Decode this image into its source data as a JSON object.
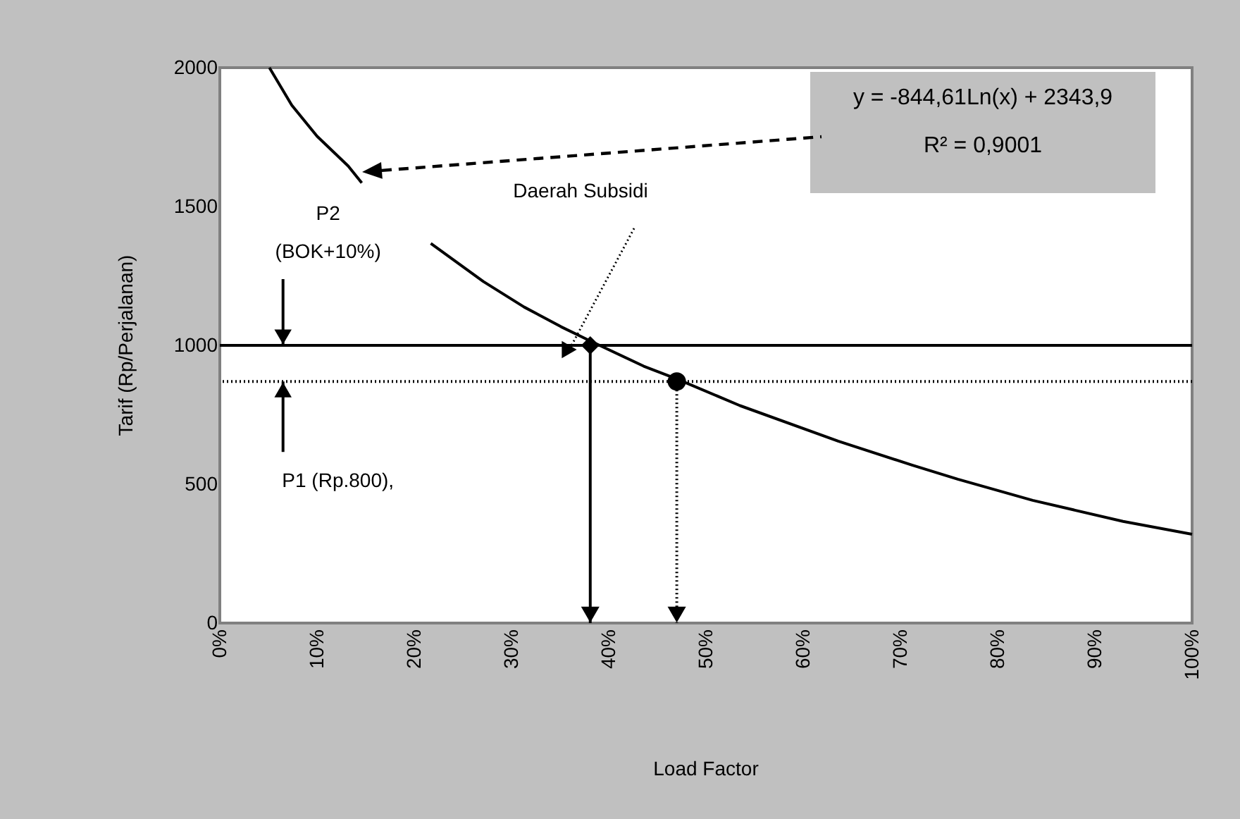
{
  "chart_data": {
    "type": "line",
    "xlabel": "Load Factor",
    "ylabel": "Tarif (Rp/Perjalanan)",
    "xlim": [
      0,
      100
    ],
    "ylim": [
      0,
      2000
    ],
    "xticks": [
      {
        "value": 0,
        "label": "0%"
      },
      {
        "value": 10,
        "label": "10%"
      },
      {
        "value": 20,
        "label": "20%"
      },
      {
        "value": 30,
        "label": "30%"
      },
      {
        "value": 40,
        "label": "40%"
      },
      {
        "value": 50,
        "label": "50%"
      },
      {
        "value": 60,
        "label": "60%"
      },
      {
        "value": 70,
        "label": "70%"
      },
      {
        "value": 80,
        "label": "80%"
      },
      {
        "value": 90,
        "label": "90%"
      },
      {
        "value": 100,
        "label": "100%"
      }
    ],
    "yticks": [
      0,
      500,
      1000,
      1500,
      2000
    ],
    "grid": false,
    "series": [
      {
        "color": "#000000",
        "line_style": "solid",
        "x": [
          5.1,
          7.4,
          10,
          13.2,
          14.6,
          18,
          21.7,
          27.1,
          31.3,
          35.1,
          38.1,
          43.6,
          47,
          53.5,
          63.6,
          71.2,
          75.9,
          83.6,
          92.9,
          100
        ],
        "values": [
          2000,
          1865,
          1753,
          1646,
          1585,
          null,
          1367,
          1230,
          1138,
          1067,
          1016,
          925,
          879,
          783,
          655,
          569,
          518,
          442,
          366,
          320
        ]
      },
      {
        "type": "scatter",
        "color": "#000000",
        "marker": "diamond",
        "x": [
          38.1
        ],
        "values": [
          1000
        ]
      },
      {
        "type": "scatter",
        "color": "#000000",
        "marker": "circle",
        "x": [
          47
        ],
        "values": [
          870
        ]
      }
    ],
    "ref_lines": [
      {
        "axis": "y",
        "value": 1000,
        "color": "#000000",
        "line_style": "solid"
      },
      {
        "axis": "y",
        "value": 870,
        "color": "#000000",
        "line_style": "dotted"
      }
    ],
    "annotations": [
      {
        "text": "P2\n(BOK+10%)",
        "x": 6.5,
        "y": 1000
      },
      {
        "text": "P1 (Rp.800),",
        "x": 6.5,
        "y": 870
      },
      "Daerah Subsidi",
      "y  = -844,61Ln(x) + 2343,9\nR² = 0,9001"
    ]
  }
}
